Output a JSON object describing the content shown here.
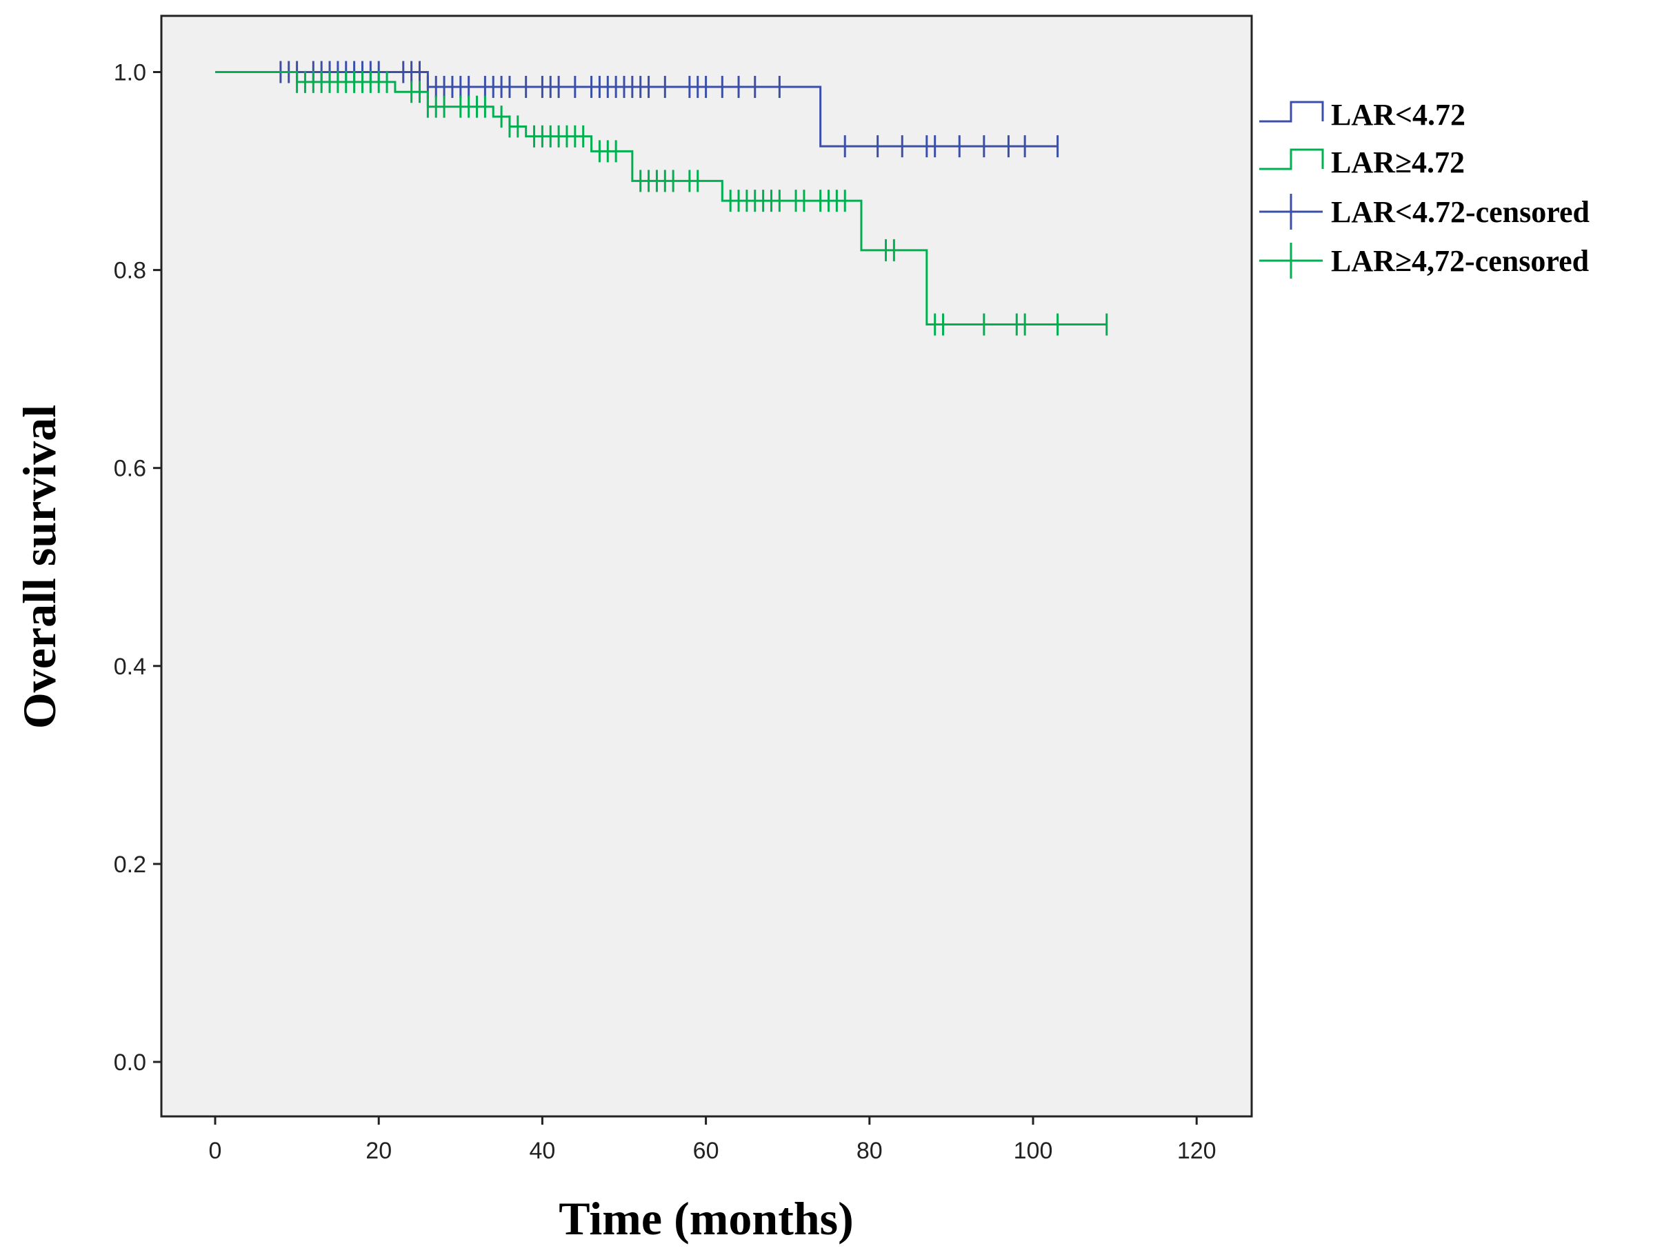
{
  "chart_data": {
    "type": "line",
    "subtype": "kaplan-meier step",
    "xlabel": "Time (months)",
    "ylabel": "Overall survival",
    "xlim": [
      -7,
      127
    ],
    "ylim": [
      -0.055,
      1.06
    ],
    "xticks": [
      "0",
      "20",
      "40",
      "60",
      "80",
      "100",
      "120"
    ],
    "xtick_values": [
      0,
      20,
      40,
      60,
      80,
      100,
      120
    ],
    "yticks": [
      "0.0",
      "0.2",
      "0.4",
      "0.6",
      "0.8",
      "1.0"
    ],
    "ytick_values": [
      0,
      0.2,
      0.4,
      0.6,
      0.8,
      1.0
    ],
    "grid": false,
    "background": "#f0f0f0",
    "legend_placement": "right",
    "legend": [
      "LAR<4.72",
      "LAR≥4.72",
      "LAR<4.72-censored",
      "LAR≥4,72-censored"
    ],
    "series": [
      {
        "name": "LAR<4.72",
        "color": "#3b4fa8",
        "steps": [
          [
            0,
            1.0
          ],
          [
            26,
            0.985
          ],
          [
            74,
            0.925
          ]
        ],
        "end": 103,
        "censored": [
          8,
          9,
          10,
          12,
          13,
          14,
          15,
          16,
          17,
          18,
          19,
          20,
          23,
          24,
          25,
          26,
          27,
          28,
          29,
          30,
          31,
          33,
          34,
          35,
          36,
          38,
          40,
          41,
          42,
          44,
          46,
          47,
          48,
          49,
          50,
          51,
          52,
          53,
          55,
          58,
          59,
          60,
          62,
          64,
          66,
          69,
          77,
          81,
          84,
          87,
          88,
          91,
          94,
          97,
          99,
          103
        ]
      },
      {
        "name": "LAR≥4.72",
        "color": "#00b050",
        "steps": [
          [
            0,
            1.0
          ],
          [
            10,
            0.99
          ],
          [
            22,
            0.98
          ],
          [
            26,
            0.965
          ],
          [
            34,
            0.955
          ],
          [
            36,
            0.945
          ],
          [
            38,
            0.935
          ],
          [
            46,
            0.92
          ],
          [
            51,
            0.89
          ],
          [
            62,
            0.87
          ],
          [
            79,
            0.82
          ],
          [
            87,
            0.745
          ]
        ],
        "end": 109,
        "censored": [
          10,
          11,
          12,
          13,
          14,
          15,
          16,
          17,
          18,
          19,
          20,
          21,
          24,
          25,
          26,
          27,
          28,
          30,
          31,
          32,
          33,
          35,
          36,
          37,
          39,
          40,
          41,
          42,
          43,
          44,
          45,
          47,
          48,
          49,
          52,
          53,
          54,
          55,
          56,
          58,
          59,
          63,
          64,
          65,
          66,
          67,
          68,
          69,
          71,
          72,
          74,
          75,
          76,
          77,
          82,
          83,
          88,
          89,
          94,
          98,
          99,
          103,
          109
        ]
      }
    ]
  }
}
